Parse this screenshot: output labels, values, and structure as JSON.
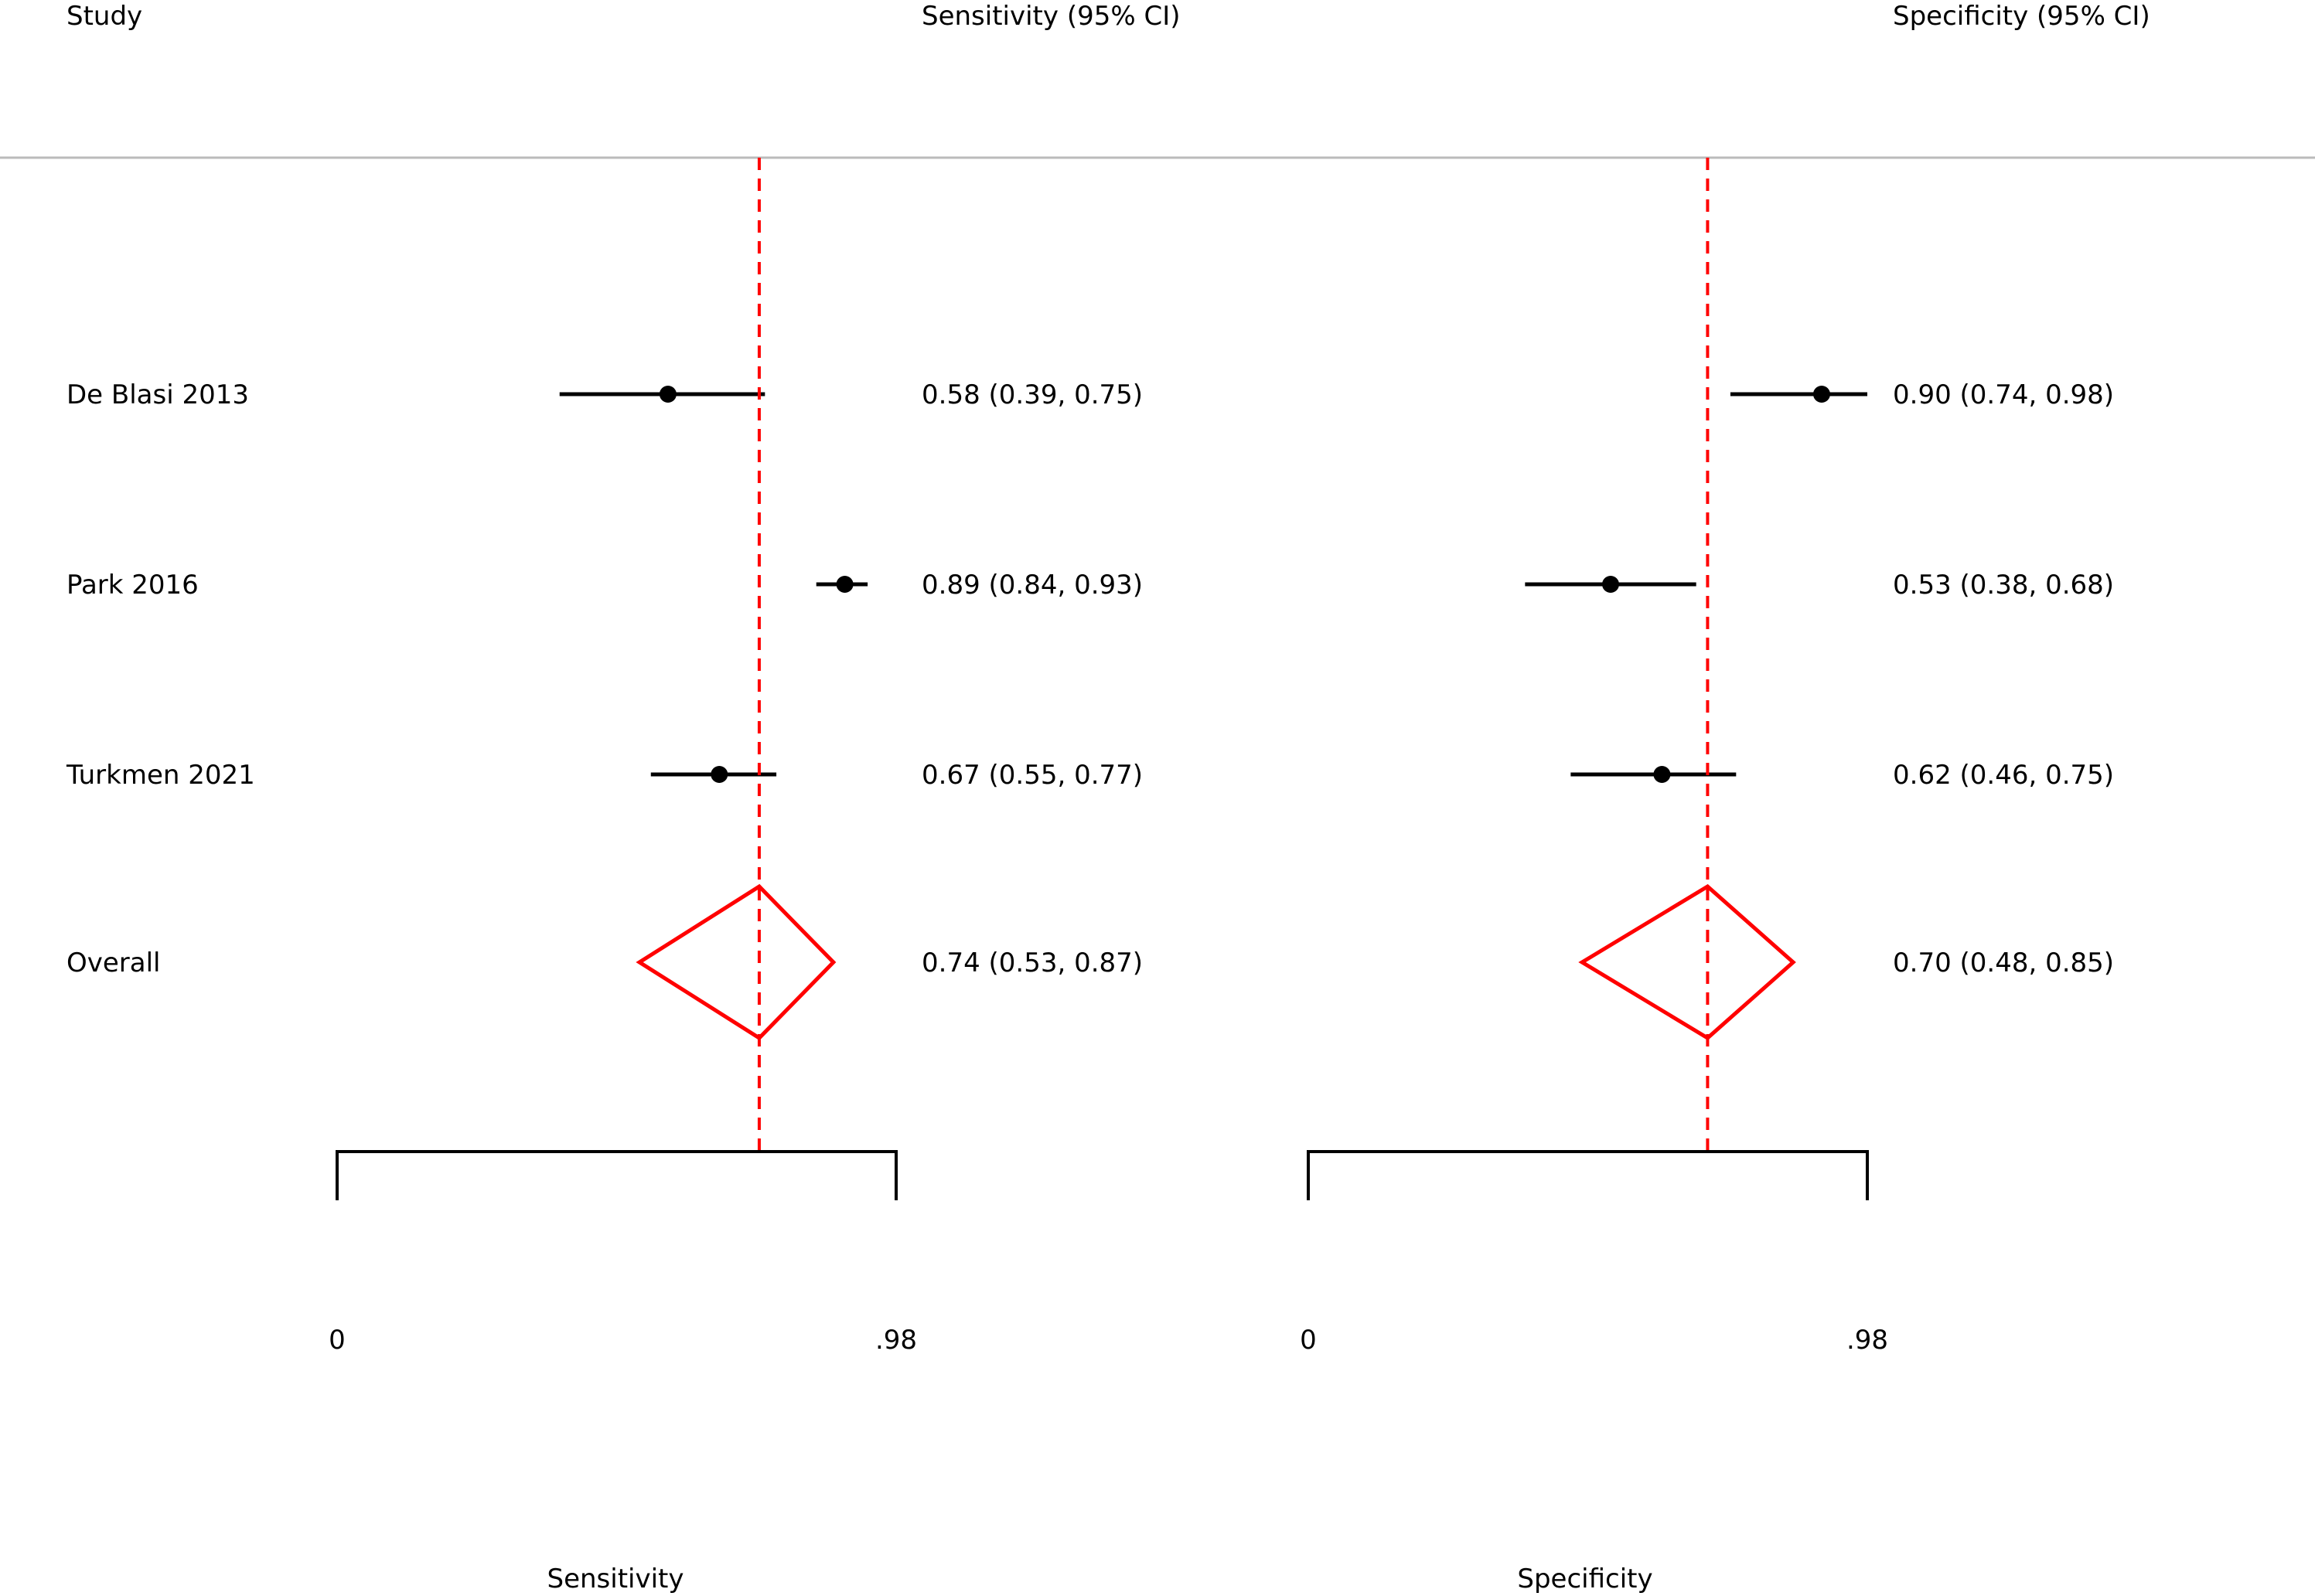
{
  "chart_data": {
    "type": "forest",
    "headers": {
      "study": "Study",
      "sensitivity": "Sensitivity (95% CI)",
      "specificity": "Specificity (95% CI)"
    },
    "xlabel_sensitivity": "Sensitivity",
    "xlabel_specificity": "Specificity",
    "xlim": [
      0,
      0.98
    ],
    "tick_labels": [
      "0",
      ".98"
    ],
    "reference_line": {
      "sensitivity": 0.74,
      "specificity": 0.7,
      "color": "#ff0000",
      "style": "dashed"
    },
    "colors": {
      "point": "#000000",
      "summary": "#ff0000"
    },
    "studies": [
      {
        "name": "De Blasi 2013",
        "sensitivity": {
          "est": 0.58,
          "lo": 0.39,
          "hi": 0.75,
          "label": "0.58 (0.39, 0.75)"
        },
        "specificity": {
          "est": 0.9,
          "lo": 0.74,
          "hi": 0.98,
          "label": "0.90 (0.74, 0.98)"
        }
      },
      {
        "name": "Park 2016",
        "sensitivity": {
          "est": 0.89,
          "lo": 0.84,
          "hi": 0.93,
          "label": "0.89 (0.84, 0.93)"
        },
        "specificity": {
          "est": 0.53,
          "lo": 0.38,
          "hi": 0.68,
          "label": "0.53 (0.38, 0.68)"
        }
      },
      {
        "name": "Turkmen 2021",
        "sensitivity": {
          "est": 0.67,
          "lo": 0.55,
          "hi": 0.77,
          "label": "0.67 (0.55, 0.77)"
        },
        "specificity": {
          "est": 0.62,
          "lo": 0.46,
          "hi": 0.75,
          "label": "0.62 (0.46, 0.75)"
        }
      }
    ],
    "overall": {
      "name": "Overall",
      "sensitivity": {
        "est": 0.74,
        "lo": 0.53,
        "hi": 0.87,
        "label": "0.74 (0.53, 0.87)"
      },
      "specificity": {
        "est": 0.7,
        "lo": 0.48,
        "hi": 0.85,
        "label": "0.70 (0.48, 0.85)"
      }
    }
  }
}
